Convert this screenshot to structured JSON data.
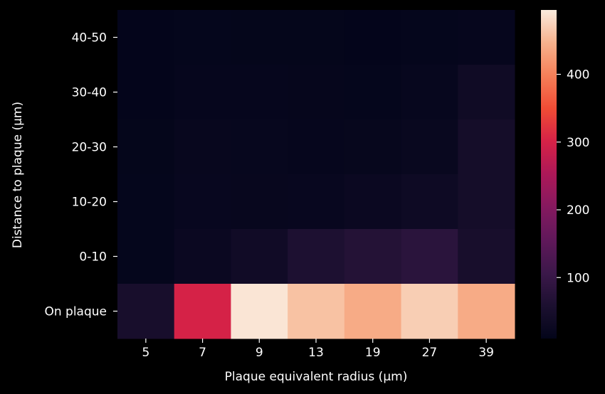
{
  "chart_data": {
    "type": "heatmap",
    "xlabel": "Plaque equivalent radius (µm)",
    "ylabel": "Distance to plaque (µm)",
    "x_categories": [
      "5",
      "7",
      "9",
      "13",
      "19",
      "27",
      "39"
    ],
    "y_categories": [
      "40-50",
      "30-40",
      "20-30",
      "10-20",
      "0-10",
      "On plaque"
    ],
    "values": [
      [
        12,
        14,
        13,
        13,
        12,
        14,
        16
      ],
      [
        12,
        16,
        16,
        15,
        14,
        18,
        35
      ],
      [
        13,
        19,
        18,
        16,
        17,
        22,
        44
      ],
      [
        14,
        20,
        19,
        20,
        25,
        32,
        44
      ],
      [
        14,
        25,
        37,
        60,
        70,
        80,
        50
      ],
      [
        50,
        300,
        490,
        460,
        440,
        470,
        440
      ]
    ],
    "colorbar": {
      "min": 10,
      "max": 495,
      "ticks": [
        100,
        200,
        300,
        400
      ],
      "colormap": "rocket",
      "location": "right"
    },
    "background_color": "#000000",
    "text_color": "#ffffff"
  }
}
